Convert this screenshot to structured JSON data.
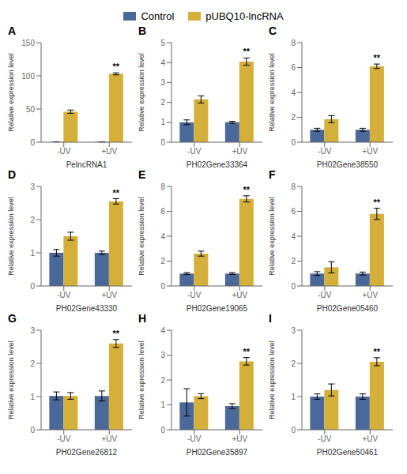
{
  "chart_data": [
    {
      "type": "bar",
      "title": "A",
      "xlabel": "PelncRNA1",
      "ylabel": "Relative expression level",
      "categories": [
        "-UV",
        "+UV"
      ],
      "series": [
        {
          "name": "Control",
          "color": "#4a6899",
          "values": [
            0.5,
            0.5
          ],
          "errors": [
            0.05,
            0.05
          ]
        },
        {
          "name": "pUBQ10-lncRNA",
          "color": "#d4af3a",
          "values": [
            46,
            103
          ],
          "errors": [
            2.5,
            1.5
          ]
        }
      ],
      "ylim": [
        0,
        150
      ],
      "yticks": [
        0,
        50,
        100,
        150
      ],
      "grid": false,
      "annotations": [
        {
          "text": "**",
          "category": "+UV",
          "series": "pUBQ10-lncRNA"
        }
      ]
    },
    {
      "type": "bar",
      "title": "B",
      "xlabel": "PH02Gene33364",
      "ylabel": "Relative expression level",
      "categories": [
        "-UV",
        "+UV"
      ],
      "series": [
        {
          "name": "Control",
          "color": "#4a6899",
          "values": [
            1.0,
            1.0
          ],
          "errors": [
            0.12,
            0.05
          ]
        },
        {
          "name": "pUBQ10-lncRNA",
          "color": "#d4af3a",
          "values": [
            2.15,
            4.05
          ],
          "errors": [
            0.18,
            0.18
          ]
        }
      ],
      "ylim": [
        0,
        5
      ],
      "yticks": [
        0,
        1,
        2,
        3,
        4,
        5
      ],
      "grid": false,
      "annotations": [
        {
          "text": "**",
          "category": "+UV",
          "series": "pUBQ10-lncRNA"
        }
      ]
    },
    {
      "type": "bar",
      "title": "C",
      "xlabel": "PH02Gene38550",
      "ylabel": "Relative expression level",
      "categories": [
        "-UV",
        "+UV"
      ],
      "series": [
        {
          "name": "Control",
          "color": "#4a6899",
          "values": [
            1.0,
            1.0
          ],
          "errors": [
            0.12,
            0.12
          ]
        },
        {
          "name": "pUBQ10-lncRNA",
          "color": "#d4af3a",
          "values": [
            1.85,
            6.1
          ],
          "errors": [
            0.28,
            0.18
          ]
        }
      ],
      "ylim": [
        0,
        8
      ],
      "yticks": [
        0,
        2,
        4,
        6,
        8
      ],
      "grid": false,
      "annotations": [
        {
          "text": "**",
          "category": "+UV",
          "series": "pUBQ10-lncRNA"
        }
      ]
    },
    {
      "type": "bar",
      "title": "D",
      "xlabel": "PH02Gene43330",
      "ylabel": "Relative expression level",
      "categories": [
        "-UV",
        "+UV"
      ],
      "series": [
        {
          "name": "Control",
          "color": "#4a6899",
          "values": [
            1.0,
            1.0
          ],
          "errors": [
            0.1,
            0.05
          ]
        },
        {
          "name": "pUBQ10-lncRNA",
          "color": "#d4af3a",
          "values": [
            1.5,
            2.55
          ],
          "errors": [
            0.12,
            0.08
          ]
        }
      ],
      "ylim": [
        0,
        3
      ],
      "yticks": [
        0,
        1,
        2,
        3
      ],
      "grid": false,
      "annotations": [
        {
          "text": "**",
          "category": "+UV",
          "series": "pUBQ10-lncRNA"
        }
      ]
    },
    {
      "type": "bar",
      "title": "E",
      "xlabel": "PH02Gene19065",
      "ylabel": "Relative expression level",
      "categories": [
        "-UV",
        "+UV"
      ],
      "series": [
        {
          "name": "Control",
          "color": "#4a6899",
          "values": [
            1.0,
            1.0
          ],
          "errors": [
            0.08,
            0.08
          ]
        },
        {
          "name": "pUBQ10-lncRNA",
          "color": "#d4af3a",
          "values": [
            2.6,
            7.0
          ],
          "errors": [
            0.2,
            0.25
          ]
        }
      ],
      "ylim": [
        0,
        8
      ],
      "yticks": [
        0,
        2,
        4,
        6,
        8
      ],
      "grid": false,
      "annotations": [
        {
          "text": "**",
          "category": "+UV",
          "series": "pUBQ10-lncRNA"
        }
      ]
    },
    {
      "type": "bar",
      "title": "F",
      "xlabel": "PH02Gene05460",
      "ylabel": "Relative expression level",
      "categories": [
        "-UV",
        "+UV"
      ],
      "series": [
        {
          "name": "Control",
          "color": "#4a6899",
          "values": [
            1.0,
            1.0
          ],
          "errors": [
            0.15,
            0.12
          ]
        },
        {
          "name": "pUBQ10-lncRNA",
          "color": "#d4af3a",
          "values": [
            1.5,
            5.8
          ],
          "errors": [
            0.45,
            0.45
          ]
        }
      ],
      "ylim": [
        0,
        8
      ],
      "yticks": [
        0,
        2,
        4,
        6,
        8
      ],
      "grid": false,
      "annotations": [
        {
          "text": "**",
          "category": "+UV",
          "series": "pUBQ10-lncRNA"
        }
      ]
    },
    {
      "type": "bar",
      "title": "G",
      "xlabel": "PH02Gene26812",
      "ylabel": "Relative expression level",
      "categories": [
        "-UV",
        "+UV"
      ],
      "series": [
        {
          "name": "Control",
          "color": "#4a6899",
          "values": [
            1.02,
            1.02
          ],
          "errors": [
            0.12,
            0.15
          ]
        },
        {
          "name": "pUBQ10-lncRNA",
          "color": "#d4af3a",
          "values": [
            1.02,
            2.6
          ],
          "errors": [
            0.1,
            0.12
          ]
        }
      ],
      "ylim": [
        0,
        3
      ],
      "yticks": [
        0,
        1,
        2,
        3
      ],
      "grid": false,
      "annotations": [
        {
          "text": "**",
          "category": "+UV",
          "series": "pUBQ10-lncRNA"
        }
      ]
    },
    {
      "type": "bar",
      "title": "H",
      "xlabel": "PH02Gene35897",
      "ylabel": "Relative expression level",
      "categories": [
        "-UV",
        "+UV"
      ],
      "series": [
        {
          "name": "Control",
          "color": "#4a6899",
          "values": [
            1.1,
            0.95
          ],
          "errors": [
            0.55,
            0.1
          ]
        },
        {
          "name": "pUBQ10-lncRNA",
          "color": "#d4af3a",
          "values": [
            1.35,
            2.75
          ],
          "errors": [
            0.1,
            0.15
          ]
        }
      ],
      "ylim": [
        0,
        4
      ],
      "yticks": [
        0,
        1,
        2,
        3,
        4
      ],
      "grid": false,
      "annotations": [
        {
          "text": "**",
          "category": "+UV",
          "series": "pUBQ10-lncRNA"
        }
      ]
    },
    {
      "type": "bar",
      "title": "I",
      "xlabel": "PH02Gene50461",
      "ylabel": "Relative expression level",
      "categories": [
        "-UV",
        "+UV"
      ],
      "series": [
        {
          "name": "Control",
          "color": "#4a6899",
          "values": [
            1.0,
            1.0
          ],
          "errors": [
            0.08,
            0.08
          ]
        },
        {
          "name": "pUBQ10-lncRNA",
          "color": "#d4af3a",
          "values": [
            1.2,
            2.05
          ],
          "errors": [
            0.18,
            0.12
          ]
        }
      ],
      "ylim": [
        0,
        3
      ],
      "yticks": [
        0,
        1,
        2,
        3
      ],
      "grid": false,
      "annotations": [
        {
          "text": "**",
          "category": "+UV",
          "series": "pUBQ10-lncRNA"
        }
      ]
    }
  ]
}
